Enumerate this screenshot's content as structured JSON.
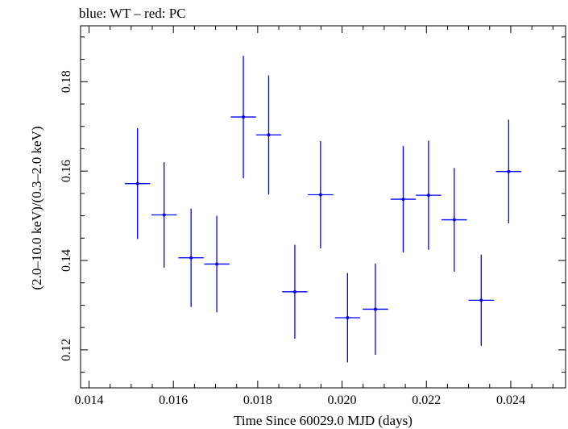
{
  "chart_data": {
    "type": "scatter",
    "title": "blue: WT – red: PC",
    "xlabel": "Time Since 60029.0 MJD (days)",
    "ylabel": "(2.0–10.0 keV)/(0.3–2.0 keV)",
    "xlim": [
      0.0138,
      0.0253
    ],
    "ylim": [
      0.1115,
      0.1925
    ],
    "x_ticks": [
      0.014,
      0.016,
      0.018,
      0.02,
      0.022,
      0.024
    ],
    "x_tick_labels": [
      "0.014",
      "0.016",
      "0.018",
      "0.020",
      "0.022",
      "0.024"
    ],
    "y_ticks": [
      0.12,
      0.14,
      0.16,
      0.18
    ],
    "y_tick_labels": [
      "0.12",
      "0.14",
      "0.16",
      "0.18"
    ],
    "grid": false,
    "series": [
      {
        "color": "#0000ff",
        "points": [
          {
            "x": 0.01515,
            "xerr": 0.0003,
            "y": 0.1572,
            "yerr": 0.0124
          },
          {
            "x": 0.01578,
            "xerr": 0.0003,
            "y": 0.1502,
            "yerr": 0.0118
          },
          {
            "x": 0.01642,
            "xerr": 0.0003,
            "y": 0.1406,
            "yerr": 0.011
          },
          {
            "x": 0.01703,
            "xerr": 0.0003,
            "y": 0.1392,
            "yerr": 0.0108
          },
          {
            "x": 0.01766,
            "xerr": 0.0003,
            "y": 0.1721,
            "yerr": 0.0137
          },
          {
            "x": 0.01826,
            "xerr": 0.0003,
            "y": 0.1681,
            "yerr": 0.0133
          },
          {
            "x": 0.01888,
            "xerr": 0.0003,
            "y": 0.133,
            "yerr": 0.0105
          },
          {
            "x": 0.01949,
            "xerr": 0.0003,
            "y": 0.1547,
            "yerr": 0.012
          },
          {
            "x": 0.02013,
            "xerr": 0.0003,
            "y": 0.1272,
            "yerr": 0.01
          },
          {
            "x": 0.02079,
            "xerr": 0.0003,
            "y": 0.1291,
            "yerr": 0.0102
          },
          {
            "x": 0.02145,
            "xerr": 0.0003,
            "y": 0.1537,
            "yerr": 0.0119
          },
          {
            "x": 0.02205,
            "xerr": 0.0003,
            "y": 0.1546,
            "yerr": 0.0122
          },
          {
            "x": 0.02266,
            "xerr": 0.0003,
            "y": 0.1491,
            "yerr": 0.0116
          },
          {
            "x": 0.0233,
            "xerr": 0.0003,
            "y": 0.1311,
            "yerr": 0.0102
          },
          {
            "x": 0.02395,
            "xerr": 0.0003,
            "y": 0.1599,
            "yerr": 0.0116
          }
        ]
      }
    ]
  }
}
